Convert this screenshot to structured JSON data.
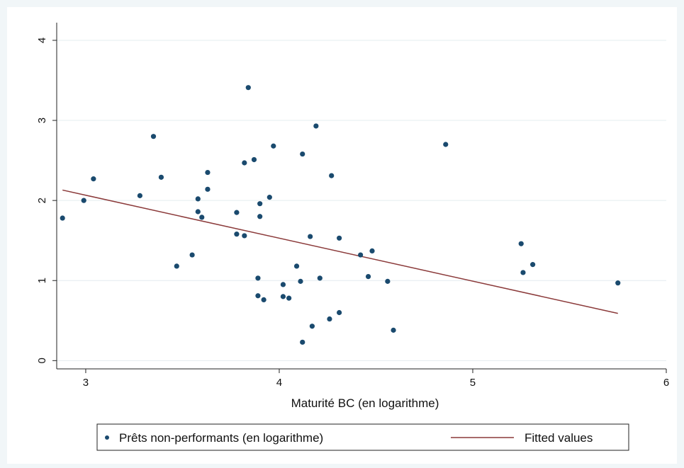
{
  "chart_data": {
    "type": "scatter",
    "xlabel": "Maturité BC (en logarithme)",
    "ylabel": "",
    "xlim": [
      2.85,
      6.0
    ],
    "ylim": [
      -0.05,
      4.15
    ],
    "xticks": [
      3,
      4,
      5,
      6
    ],
    "yticks": [
      0,
      1,
      2,
      3,
      4
    ],
    "grid": true,
    "legend_position": "bottom",
    "colors": {
      "points": "#1a4a6e",
      "fit": "#8b3a3a",
      "grid": "#e4ecef"
    },
    "series": [
      {
        "name": "Prêts non-performants (en logarithme)",
        "type": "scatter",
        "points": [
          [
            2.88,
            1.78
          ],
          [
            2.99,
            2.0
          ],
          [
            3.04,
            2.27
          ],
          [
            3.28,
            2.06
          ],
          [
            3.35,
            2.8
          ],
          [
            3.39,
            2.29
          ],
          [
            3.47,
            1.18
          ],
          [
            3.55,
            1.32
          ],
          [
            3.58,
            2.02
          ],
          [
            3.58,
            1.86
          ],
          [
            3.6,
            1.79
          ],
          [
            3.63,
            2.14
          ],
          [
            3.63,
            2.35
          ],
          [
            3.78,
            1.85
          ],
          [
            3.78,
            1.58
          ],
          [
            3.82,
            1.56
          ],
          [
            3.82,
            2.47
          ],
          [
            3.84,
            3.41
          ],
          [
            3.87,
            2.51
          ],
          [
            3.89,
            1.03
          ],
          [
            3.89,
            0.81
          ],
          [
            3.9,
            1.96
          ],
          [
            3.9,
            1.8
          ],
          [
            3.92,
            0.76
          ],
          [
            3.95,
            2.04
          ],
          [
            3.97,
            2.68
          ],
          [
            4.02,
            0.95
          ],
          [
            4.02,
            0.8
          ],
          [
            4.05,
            0.78
          ],
          [
            4.09,
            1.18
          ],
          [
            4.11,
            0.99
          ],
          [
            4.12,
            0.23
          ],
          [
            4.12,
            2.58
          ],
          [
            4.16,
            1.55
          ],
          [
            4.17,
            0.43
          ],
          [
            4.19,
            2.93
          ],
          [
            4.21,
            1.03
          ],
          [
            4.26,
            0.52
          ],
          [
            4.27,
            2.31
          ],
          [
            4.31,
            1.53
          ],
          [
            4.31,
            0.6
          ],
          [
            4.42,
            1.32
          ],
          [
            4.46,
            1.05
          ],
          [
            4.48,
            1.37
          ],
          [
            4.56,
            0.99
          ],
          [
            4.59,
            0.38
          ],
          [
            4.86,
            2.7
          ],
          [
            5.25,
            1.46
          ],
          [
            5.26,
            1.1
          ],
          [
            5.31,
            1.2
          ],
          [
            5.75,
            0.97
          ]
        ]
      },
      {
        "name": "Fitted values",
        "type": "line",
        "points": [
          [
            2.88,
            2.13
          ],
          [
            5.75,
            0.59
          ]
        ]
      }
    ]
  }
}
